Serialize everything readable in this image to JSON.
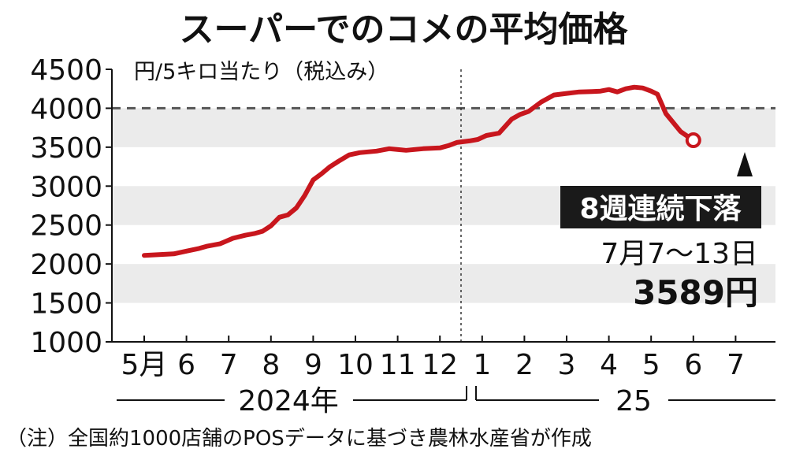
{
  "chart_data": {
    "type": "line",
    "title": "スーパーでのコメの平均価格",
    "unit_label": "円/5キロ当たり（税込み）",
    "ylim": [
      1000,
      4500
    ],
    "yticks": [
      1000,
      1500,
      2000,
      2500,
      3000,
      3500,
      4000,
      4500
    ],
    "reference_line": 4000,
    "x_month_labels": [
      "5月",
      "6",
      "7",
      "8",
      "9",
      "10",
      "11",
      "12",
      "1",
      "2",
      "3",
      "4",
      "5",
      "6",
      "7"
    ],
    "year_labels": [
      "2024年",
      "25"
    ],
    "series": [
      {
        "color": "#c8161d",
        "x": [
          0.0,
          0.35,
          0.7,
          1.0,
          1.3,
          1.5,
          1.8,
          2.1,
          2.4,
          2.6,
          2.8,
          3.0,
          3.2,
          3.4,
          3.6,
          3.8,
          4.0,
          4.2,
          4.4,
          4.6,
          4.85,
          5.1,
          5.5,
          5.8,
          6.2,
          6.6,
          7.0,
          7.2,
          7.4,
          7.7,
          7.9,
          8.1,
          8.4,
          8.7,
          8.9,
          9.1,
          9.4,
          9.7,
          10.0,
          10.3,
          10.6,
          10.8,
          11.0,
          11.2,
          11.4,
          11.6,
          11.8,
          12.0,
          12.15,
          12.35,
          12.7,
          13.0
        ],
        "values": [
          2110,
          2120,
          2130,
          2165,
          2200,
          2230,
          2260,
          2330,
          2370,
          2390,
          2420,
          2490,
          2600,
          2630,
          2720,
          2880,
          3080,
          3160,
          3250,
          3320,
          3400,
          3430,
          3450,
          3480,
          3460,
          3480,
          3490,
          3520,
          3560,
          3580,
          3600,
          3650,
          3680,
          3860,
          3920,
          3960,
          4080,
          4170,
          4190,
          4210,
          4215,
          4220,
          4240,
          4210,
          4250,
          4270,
          4260,
          4220,
          4180,
          3930,
          3700,
          3589
        ]
      }
    ],
    "annotation": {
      "badge": "8週連続下落",
      "period": "7月7〜13日",
      "value_label": "3589円"
    }
  },
  "footnote": "（注）全国約1000店舗のPOSデータに基づき農林水産省が作成"
}
